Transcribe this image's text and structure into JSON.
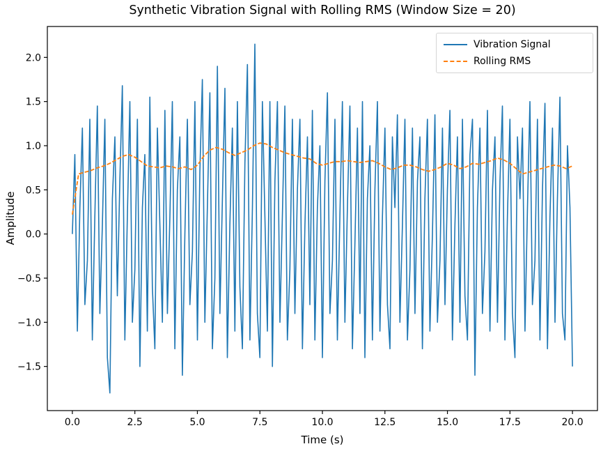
{
  "chart_data": {
    "type": "line",
    "title": "Synthetic Vibration Signal with Rolling RMS (Window Size = 20)",
    "xlabel": "Time (s)",
    "ylabel": "Amplitude",
    "xlim": [
      -1.0,
      21.0
    ],
    "ylim": [
      -2.0,
      2.35
    ],
    "grid": false,
    "legend_position": "upper right",
    "xticks": [
      0.0,
      2.5,
      5.0,
      7.5,
      10.0,
      12.5,
      15.0,
      17.5,
      20.0
    ],
    "xtick_labels": [
      "0.0",
      "2.5",
      "5.0",
      "7.5",
      "10.0",
      "12.5",
      "15.0",
      "17.5",
      "20.0"
    ],
    "yticks": [
      -1.5,
      -1.0,
      -0.5,
      0.0,
      0.5,
      1.0,
      1.5,
      2.0
    ],
    "ytick_labels": [
      "−1.5",
      "−1.0",
      "−0.5",
      "0.0",
      "0.5",
      "1.0",
      "1.5",
      "2.0"
    ],
    "series": [
      {
        "name": "Vibration Signal",
        "color": "#1f77b4",
        "linestyle": "solid",
        "linewidth": 1.6,
        "x0": 0.0,
        "dx": 0.1,
        "y": [
          0.0,
          0.9,
          -1.1,
          0.3,
          1.2,
          -0.8,
          -0.3,
          1.3,
          -1.2,
          0.2,
          1.45,
          -0.9,
          0.1,
          1.3,
          -1.4,
          -1.8,
          0.4,
          1.1,
          -0.7,
          0.6,
          1.68,
          -1.2,
          0.2,
          1.5,
          -1.0,
          -0.4,
          1.3,
          -1.5,
          0.3,
          0.9,
          -1.1,
          1.55,
          -0.6,
          -1.3,
          1.2,
          0.1,
          -1.0,
          1.4,
          -0.9,
          0.2,
          1.5,
          -1.3,
          0.5,
          1.1,
          -1.6,
          0.0,
          1.3,
          -0.8,
          -0.2,
          1.5,
          -1.2,
          0.7,
          1.75,
          -1.0,
          0.3,
          1.6,
          -1.3,
          -0.5,
          1.9,
          -0.9,
          0.4,
          1.65,
          -1.4,
          0.1,
          1.2,
          -1.1,
          1.5,
          -0.6,
          -1.3,
          0.8,
          1.92,
          -1.2,
          0.3,
          2.15,
          -0.9,
          -1.4,
          1.5,
          0.2,
          -1.1,
          1.5,
          -1.5,
          0.6,
          1.5,
          -1.0,
          0.2,
          1.45,
          -1.2,
          -0.4,
          1.3,
          -0.9,
          0.5,
          1.3,
          -1.3,
          0.1,
          1.1,
          -0.8,
          1.4,
          -1.2,
          0.3,
          1.0,
          -1.4,
          0.6,
          1.6,
          -0.9,
          -0.3,
          1.3,
          -1.2,
          0.2,
          1.5,
          -1.0,
          0.3,
          1.45,
          -1.3,
          -0.1,
          1.2,
          -0.9,
          1.5,
          -1.4,
          0.4,
          1.0,
          -1.2,
          0.5,
          1.5,
          -1.1,
          0.2,
          1.2,
          -0.8,
          -1.3,
          1.1,
          0.3,
          1.35,
          -1.0,
          0.1,
          1.3,
          -1.2,
          -0.4,
          1.2,
          -0.9,
          0.6,
          1.1,
          -1.3,
          0.4,
          1.3,
          -1.1,
          0.0,
          1.35,
          -1.0,
          -0.3,
          1.2,
          -0.8,
          0.5,
          1.4,
          -1.2,
          0.1,
          1.1,
          -1.0,
          1.3,
          -0.7,
          -1.2,
          0.9,
          1.3,
          -1.6,
          0.3,
          1.2,
          -0.9,
          -0.2,
          1.4,
          -1.1,
          0.5,
          1.1,
          -1.0,
          0.6,
          1.45,
          -1.2,
          0.2,
          1.3,
          -0.9,
          -1.4,
          1.1,
          0.4,
          1.2,
          -1.1,
          0.3,
          1.5,
          -0.8,
          -0.3,
          1.3,
          -1.2,
          0.5,
          1.48,
          -1.3,
          0.2,
          1.2,
          -1.0,
          0.4,
          1.55,
          -0.9,
          -1.2,
          1.0,
          0.3,
          -1.5
        ]
      },
      {
        "name": "Rolling RMS",
        "color": "#ff7f0e",
        "linestyle": "dashed",
        "linewidth": 1.8,
        "x0": 0.0,
        "dx": 0.25,
        "y": [
          0.22,
          0.68,
          0.7,
          0.72,
          0.75,
          0.77,
          0.8,
          0.84,
          0.88,
          0.9,
          0.87,
          0.82,
          0.77,
          0.76,
          0.75,
          0.77,
          0.76,
          0.74,
          0.76,
          0.73,
          0.78,
          0.88,
          0.95,
          0.98,
          0.96,
          0.92,
          0.89,
          0.92,
          0.95,
          1.0,
          1.03,
          1.02,
          0.98,
          0.95,
          0.92,
          0.9,
          0.88,
          0.86,
          0.85,
          0.8,
          0.78,
          0.8,
          0.82,
          0.82,
          0.83,
          0.82,
          0.81,
          0.82,
          0.83,
          0.8,
          0.76,
          0.73,
          0.75,
          0.78,
          0.78,
          0.76,
          0.73,
          0.71,
          0.73,
          0.76,
          0.8,
          0.78,
          0.74,
          0.76,
          0.8,
          0.79,
          0.81,
          0.83,
          0.86,
          0.84,
          0.8,
          0.74,
          0.68,
          0.7,
          0.72,
          0.74,
          0.76,
          0.78,
          0.77,
          0.74,
          0.77
        ]
      }
    ]
  },
  "colors": {
    "signal": "#1f77b4",
    "rms": "#ff7f0e",
    "spine": "#000000",
    "background": "#ffffff"
  }
}
